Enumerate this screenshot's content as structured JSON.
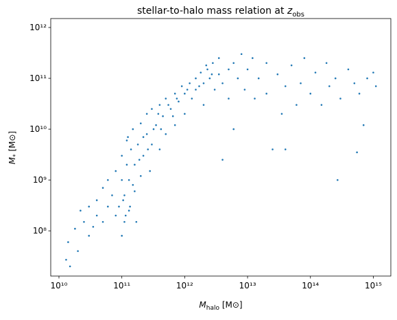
{
  "chart_data": {
    "type": "scatter",
    "title": {
      "text": "stellar-to-halo mass relation at ",
      "var": "z",
      "sub": "obs"
    },
    "xlabel": {
      "main": "M",
      "sub": "halo",
      "unit": " [M⊙]"
    },
    "ylabel": {
      "main": "M",
      "sub": "*",
      "unit": " [M⊙]"
    },
    "color": "#1f77b4",
    "xlog": true,
    "ylog": true,
    "xlim": [
      7400000000.0,
      1900000000000000.0
    ],
    "ylim": [
      12900000.0,
      1500000000000.0
    ],
    "xticks": [
      {
        "value": 10000000000.0,
        "label": "10¹⁰"
      },
      {
        "value": 100000000000.0,
        "label": "10¹¹"
      },
      {
        "value": 1000000000000.0,
        "label": "10¹²"
      },
      {
        "value": 10000000000000.0,
        "label": "10¹³"
      },
      {
        "value": 100000000000000.0,
        "label": "10¹⁴"
      },
      {
        "value": 1000000000000000.0,
        "label": "10¹⁵"
      }
    ],
    "yticks": [
      {
        "value": 100000000.0,
        "label": "10⁸"
      },
      {
        "value": 1000000000.0,
        "label": "10⁹"
      },
      {
        "value": 10000000000.0,
        "label": "10¹⁰"
      },
      {
        "value": 100000000000.0,
        "label": "10¹¹"
      },
      {
        "value": 1000000000000.0,
        "label": "10¹²"
      }
    ],
    "x": [
      13000000000.0,
      15000000000.0,
      14000000000.0,
      18000000000.0,
      20000000000.0,
      22000000000.0,
      25000000000.0,
      30000000000.0,
      30000000000.0,
      35000000000.0,
      40000000000.0,
      40000000000.0,
      50000000000.0,
      50000000000.0,
      60000000000.0,
      60000000000.0,
      70000000000.0,
      80000000000.0,
      80000000000.0,
      90000000000.0,
      100000000000.0,
      100000000000.0,
      100000000000.0,
      110000000000.0,
      110000000000.0,
      120000000000.0,
      120000000000.0,
      130000000000.0,
      130000000000.0,
      140000000000.0,
      150000000000.0,
      150000000000.0,
      160000000000.0,
      170000000000.0,
      180000000000.0,
      200000000000.0,
      200000000000.0,
      220000000000.0,
      250000000000.0,
      250000000000.0,
      280000000000.0,
      300000000000.0,
      300000000000.0,
      350000000000.0,
      400000000000.0,
      400000000000.0,
      450000000000.0,
      500000000000.0,
      500000000000.0,
      600000000000.0,
      700000000000.0,
      700000000000.0,
      800000000000.0,
      900000000000.0,
      1000000000000.0,
      1000000000000.0,
      1200000000000.0,
      1300000000000.0,
      1500000000000.0,
      1500000000000.0,
      1800000000000.0,
      2000000000000.0,
      2000000000000.0,
      2300000000000.0,
      2500000000000.0,
      2800000000000.0,
      3000000000000.0,
      3500000000000.0,
      3500000000000.0,
      4000000000000.0,
      4000000000000.0,
      5000000000000.0,
      5000000000000.0,
      6000000000000.0,
      6000000000000.0,
      7000000000000.0,
      8000000000000.0,
      9000000000000.0,
      10000000000000.0,
      12000000000000.0,
      13000000000000.0,
      15000000000000.0,
      20000000000000.0,
      20000000000000.0,
      25000000000000.0,
      30000000000000.0,
      35000000000000.0,
      40000000000000.0,
      40000000000000.0,
      50000000000000.0,
      60000000000000.0,
      70000000000000.0,
      80000000000000.0,
      100000000000000.0,
      120000000000000.0,
      150000000000000.0,
      180000000000000.0,
      200000000000000.0,
      250000000000000.0,
      270000000000000.0,
      300000000000000.0,
      400000000000000.0,
      500000000000000.0,
      550000000000000.0,
      600000000000000.0,
      700000000000000.0,
      800000000000000.0,
      1000000000000000.0,
      1100000000000000.0,
      105000000000.0,
      115000000000.0,
      125000000000.0,
      135000000000.0,
      160000000000.0,
      190000000000.0,
      220000000000.0,
      260000000000.0,
      320000000000.0,
      380000000000.0,
      420000000000.0,
      550000000000.0,
      650000000000.0,
      750000000000.0,
      1100000000000.0,
      1700000000000.0,
      2200000000000.0,
      2700000000000.0
    ],
    "values": [
      27000000.0,
      20000000.0,
      60000000.0,
      110000000.0,
      40000000.0,
      250000000.0,
      150000000.0,
      80000000.0,
      300000000.0,
      120000000.0,
      400000000.0,
      200000000.0,
      700000000.0,
      150000000.0,
      300000000.0,
      1000000000.0,
      500000000.0,
      1500000000.0,
      200000000.0,
      300000000.0,
      80000000.0,
      1000000000.0,
      3000000000.0,
      150000000.0,
      500000000.0,
      2000000000.0,
      6000000000.0,
      250000000.0,
      1000000000.0,
      4000000000.0,
      800000000.0,
      10000000000.0,
      2000000000.0,
      150000000.0,
      5000000000.0,
      1200000000.0,
      13000000000.0,
      3000000000.0,
      8000000000.0,
      20000000000.0,
      1500000000.0,
      5000000000.0,
      25000000000.0,
      12000000000.0,
      30000000000.0,
      4000000000.0,
      18000000000.0,
      40000000000.0,
      8000000000.0,
      25000000000.0,
      50000000000.0,
      12000000000.0,
      35000000000.0,
      70000000000.0,
      50000000000.0,
      20000000000.0,
      80000000000.0,
      40000000000.0,
      100000000000.0,
      60000000000.0,
      130000000000.0,
      80000000000.0,
      30000000000.0,
      150000000000.0,
      100000000000.0,
      200000000000.0,
      60000000000.0,
      120000000000.0,
      250000000000.0,
      80000000000.0,
      2500000000.0,
      150000000000.0,
      40000000000.0,
      200000000000.0,
      10000000000.0,
      100000000000.0,
      300000000000.0,
      60000000000.0,
      150000000000.0,
      250000000000.0,
      40000000000.0,
      100000000000.0,
      200000000000.0,
      50000000000.0,
      4000000000.0,
      120000000000.0,
      20000000000.0,
      70000000000.0,
      4000000000.0,
      180000000000.0,
      30000000000.0,
      80000000000.0,
      250000000000.0,
      50000000000.0,
      130000000000.0,
      30000000000.0,
      200000000000.0,
      70000000000.0,
      100000000000.0,
      1000000000.0,
      40000000000.0,
      150000000000.0,
      80000000000.0,
      3500000000.0,
      50000000000.0,
      12000000000.0,
      100000000000.0,
      130000000000.0,
      70000000000.0,
      400000000.0,
      200000000.0,
      7000000000.0,
      300000000.0,
      600000000.0,
      2500000000.0,
      7000000000.0,
      4000000000.0,
      10000000000.0,
      20000000000.0,
      10000000000.0,
      30000000000.0,
      18000000000.0,
      40000000000.0,
      60000000000.0,
      70000000000.0,
      180000000000.0,
      120000000000.0
    ]
  }
}
